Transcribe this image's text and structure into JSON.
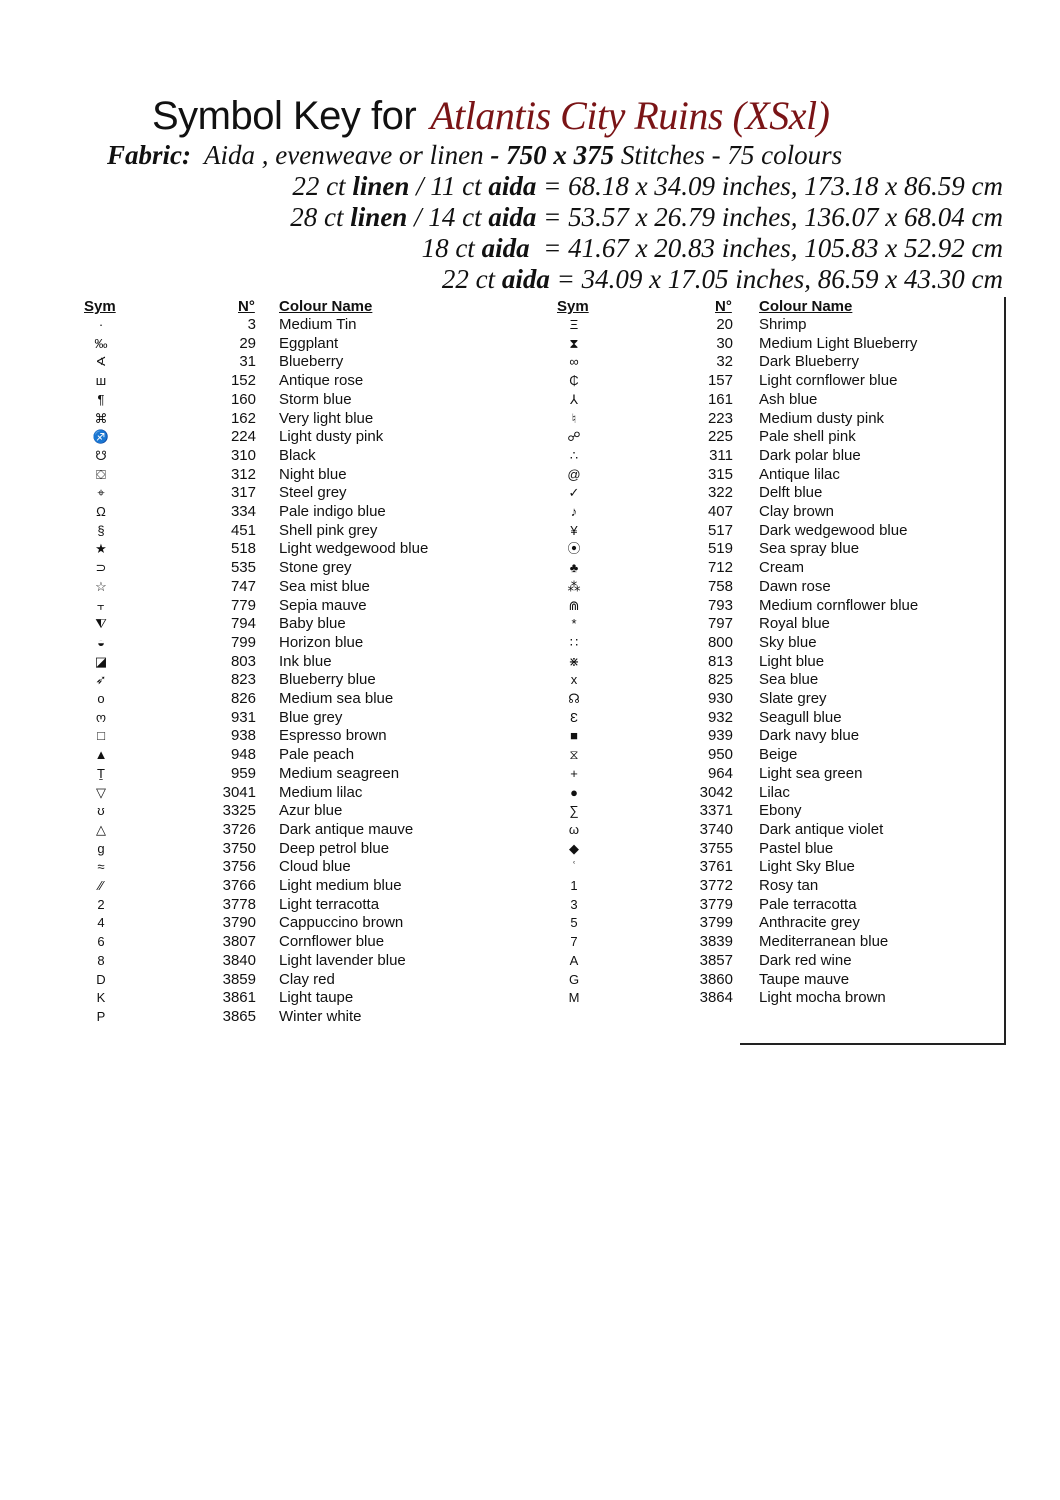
{
  "title": {
    "prefix": "Symbol Key for",
    "pattern_name": "Atlantis City Ruins (XSxl)",
    "pattern_color": "#7a1416"
  },
  "fabric": {
    "label": "Fabric:",
    "types": "Aida , evenweave or  linen",
    "sep1": " - ",
    "size": "750 x 375",
    "stitches": " Stitches - 75 colours"
  },
  "sizes": [
    {
      "a": "22 ct ",
      "b": "linen",
      "c": " / 11 ct ",
      "d": "aida",
      "e": " = 68.18 x 34.09 inches, 173.18 x 86.59 cm"
    },
    {
      "a": "28 ct ",
      "b": "linen",
      "c": " / 14 ct ",
      "d": "aida",
      "e": " = 53.57 x 26.79 inches, 136.07 x 68.04 cm"
    },
    {
      "a": "18 ct ",
      "b": "",
      "c": "",
      "d": "aida",
      "e": "  = 41.67 x 20.83 inches, 105.83 x 52.92 cm"
    },
    {
      "a": "22 ct ",
      "b": "",
      "c": "",
      "d": "aida",
      "e": " = 34.09 x 17.05 inches, 86.59 x 43.30 cm"
    }
  ],
  "headers": {
    "sym": "Sym",
    "num": "N°",
    "name": "Colour Name"
  },
  "left": [
    {
      "sym": "·",
      "num": "3",
      "name": "Medium Tin"
    },
    {
      "sym": "‰",
      "num": "29",
      "name": "Eggplant"
    },
    {
      "sym": "∢",
      "num": "31",
      "name": "Blueberry"
    },
    {
      "sym": "ш",
      "num": "152",
      "name": "Antique rose"
    },
    {
      "sym": "¶",
      "num": "160",
      "name": "Storm blue"
    },
    {
      "sym": "⌘",
      "num": "162",
      "name": "Very light blue"
    },
    {
      "sym": "♐",
      "num": "224",
      "name": "Light dusty pink"
    },
    {
      "sym": "☋",
      "num": "310",
      "name": "Black"
    },
    {
      "sym": "⛋",
      "num": "312",
      "name": "Night blue"
    },
    {
      "sym": "⌖",
      "num": "317",
      "name": "Steel grey"
    },
    {
      "sym": "Ω",
      "num": "334",
      "name": "Pale indigo blue"
    },
    {
      "sym": "§",
      "num": "451",
      "name": "Shell pink grey"
    },
    {
      "sym": "★",
      "num": "518",
      "name": "Light wedgewood blue"
    },
    {
      "sym": "⊃",
      "num": "535",
      "name": "Stone grey"
    },
    {
      "sym": "☆",
      "num": "747",
      "name": "Sea mist blue"
    },
    {
      "sym": "⫟",
      "num": "779",
      "name": "Sepia mauve"
    },
    {
      "sym": "⧨",
      "num": "794",
      "name": "Baby blue"
    },
    {
      "sym": "◒",
      "num": "799",
      "name": "Horizon blue"
    },
    {
      "sym": "◪",
      "num": "803",
      "name": "Ink blue"
    },
    {
      "sym": "➶",
      "num": "823",
      "name": "Blueberry blue"
    },
    {
      "sym": "o",
      "num": "826",
      "name": "Medium sea blue"
    },
    {
      "sym": "ო",
      "num": "931",
      "name": "Blue grey"
    },
    {
      "sym": "□",
      "num": "938",
      "name": "Espresso brown"
    },
    {
      "sym": "▲",
      "num": "948",
      "name": "Pale peach"
    },
    {
      "sym": "Ṯ",
      "num": "959",
      "name": "Medium seagreen"
    },
    {
      "sym": "▽",
      "num": "3041",
      "name": "Medium lilac"
    },
    {
      "sym": "ʊ",
      "num": "3325",
      "name": "Azur blue"
    },
    {
      "sym": "△",
      "num": "3726",
      "name": "Dark antique mauve"
    },
    {
      "sym": "g",
      "num": "3750",
      "name": "Deep petrol blue"
    },
    {
      "sym": "≈",
      "num": "3756",
      "name": "Cloud blue"
    },
    {
      "sym": "⁄⁄",
      "num": "3766",
      "name": "Light medium blue"
    },
    {
      "sym": "2",
      "num": "3778",
      "name": "Light terracotta"
    },
    {
      "sym": "4",
      "num": "3790",
      "name": "Cappuccino brown"
    },
    {
      "sym": "6",
      "num": "3807",
      "name": "Cornflower blue"
    },
    {
      "sym": "8",
      "num": "3840",
      "name": "Light lavender blue"
    },
    {
      "sym": "D",
      "num": "3859",
      "name": "Clay red"
    },
    {
      "sym": "K",
      "num": "3861",
      "name": "Light taupe"
    },
    {
      "sym": "P",
      "num": "3865",
      "name": "Winter white"
    }
  ],
  "right": [
    {
      "sym": "Ξ",
      "num": "20",
      "name": "Shrimp"
    },
    {
      "sym": "⧗",
      "num": "30",
      "name": "Medium Light Blueberry"
    },
    {
      "sym": "∞",
      "num": "32",
      "name": "Dark Blueberry"
    },
    {
      "sym": "₵",
      "num": "157",
      "name": "Light cornflower blue"
    },
    {
      "sym": "⅄",
      "num": "161",
      "name": "Ash blue"
    },
    {
      "sym": "♮",
      "num": "223",
      "name": "Medium dusty pink"
    },
    {
      "sym": "☍",
      "num": "225",
      "name": "Pale shell pink"
    },
    {
      "sym": "∴",
      "num": "311",
      "name": "Dark polar blue"
    },
    {
      "sym": "@",
      "num": "315",
      "name": "Antique lilac"
    },
    {
      "sym": "✓",
      "num": "322",
      "name": "Delft blue"
    },
    {
      "sym": "♪",
      "num": "407",
      "name": "Clay brown"
    },
    {
      "sym": "¥",
      "num": "517",
      "name": "Dark wedgewood blue"
    },
    {
      "sym": "⦿",
      "num": "519",
      "name": "Sea spray blue"
    },
    {
      "sym": "♣",
      "num": "712",
      "name": "Cream"
    },
    {
      "sym": "⁂",
      "num": "758",
      "name": "Dawn rose"
    },
    {
      "sym": "⋒",
      "num": "793",
      "name": "Medium cornflower blue"
    },
    {
      "sym": "*",
      "num": "797",
      "name": "Royal blue"
    },
    {
      "sym": "∷",
      "num": "800",
      "name": "Sky blue"
    },
    {
      "sym": "⋇",
      "num": "813",
      "name": "Light blue"
    },
    {
      "sym": "x",
      "num": "825",
      "name": "Sea blue"
    },
    {
      "sym": "☊",
      "num": "930",
      "name": "Slate grey"
    },
    {
      "sym": "Ɛ",
      "num": "932",
      "name": "Seagull blue"
    },
    {
      "sym": "■",
      "num": "939",
      "name": "Dark navy blue"
    },
    {
      "sym": "⧖",
      "num": "950",
      "name": "Beige"
    },
    {
      "sym": "+",
      "num": "964",
      "name": "Light sea green"
    },
    {
      "sym": "●",
      "num": "3042",
      "name": "Lilac"
    },
    {
      "sym": "∑",
      "num": "3371",
      "name": "Ebony"
    },
    {
      "sym": "ω",
      "num": "3740",
      "name": "Dark antique violet"
    },
    {
      "sym": "◆",
      "num": "3755",
      "name": "Pastel blue"
    },
    {
      "sym": "ʿ",
      "num": "3761",
      "name": "Light Sky Blue"
    },
    {
      "sym": "1",
      "num": "3772",
      "name": "Rosy tan"
    },
    {
      "sym": "3",
      "num": "3779",
      "name": "Pale terracotta"
    },
    {
      "sym": "5",
      "num": "3799",
      "name": "Anthracite grey"
    },
    {
      "sym": "7",
      "num": "3839",
      "name": "Mediterranean blue"
    },
    {
      "sym": "A",
      "num": "3857",
      "name": "Dark red wine"
    },
    {
      "sym": "G",
      "num": "3860",
      "name": "Taupe mauve"
    },
    {
      "sym": "M",
      "num": "3864",
      "name": "Light mocha brown"
    }
  ]
}
